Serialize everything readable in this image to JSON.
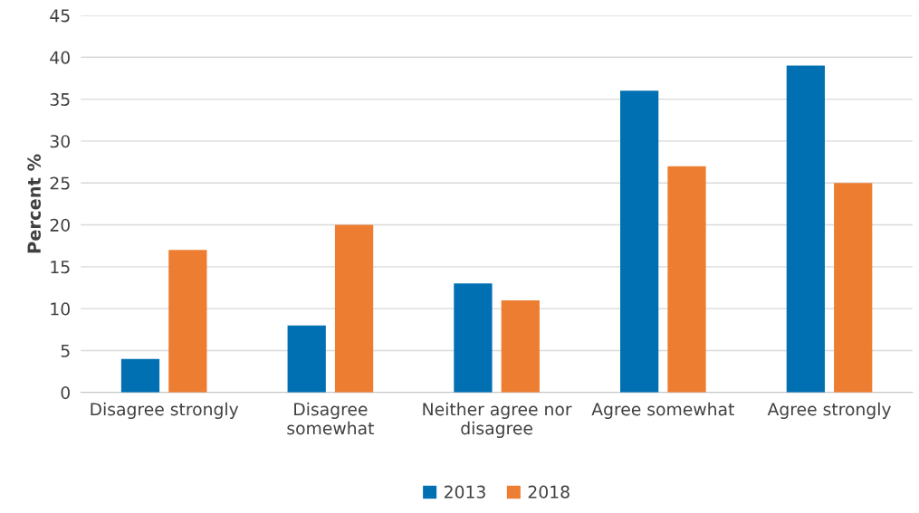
{
  "chart_data": {
    "type": "bar",
    "ylabel": "Percent %",
    "categories": [
      "Disagree strongly",
      "Disagree\nsomewhat",
      "Neither agree nor\ndisagree",
      "Agree somewhat",
      "Agree strongly"
    ],
    "series": [
      {
        "name": "2013",
        "color": "#0070b3",
        "values": [
          4,
          8,
          13,
          36,
          39
        ]
      },
      {
        "name": "2018",
        "color": "#ed7d31",
        "values": [
          17,
          20,
          11,
          27,
          25
        ]
      }
    ],
    "ylim": [
      0,
      45
    ],
    "yticks": [
      0,
      5,
      10,
      15,
      20,
      25,
      30,
      35,
      40,
      45
    ],
    "grid": "y",
    "legend": "bottom"
  }
}
